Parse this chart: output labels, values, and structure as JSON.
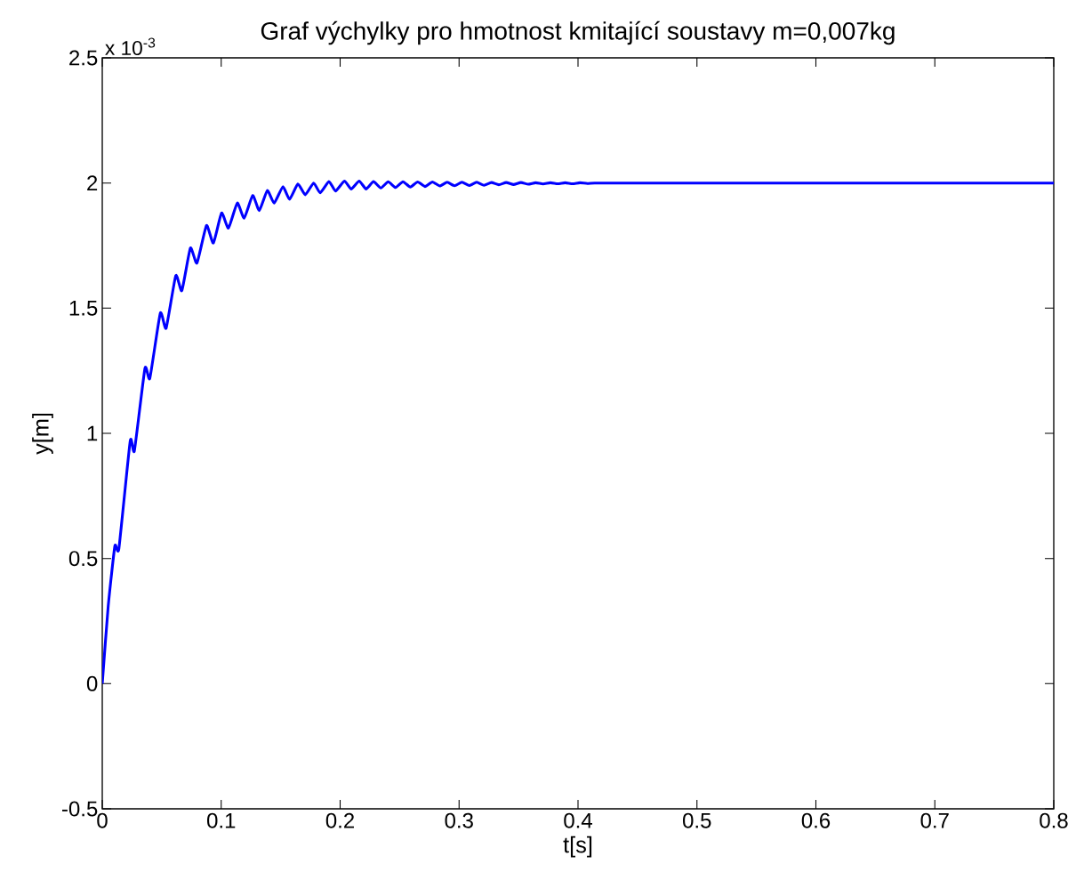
{
  "chart_data": {
    "type": "line",
    "title": "Graf výchylky pro hmotnost kmitající soustavy m=0,007kg",
    "xlabel": "t[s]",
    "ylabel": "y[m]",
    "annotations": [
      "x 10$^{-3}$"
    ],
    "color": "#0000ff",
    "line_style": "solid",
    "x": [
      0,
      0.005,
      0.0106,
      0.014,
      0.0235,
      0.027,
      0.0359,
      0.04,
      0.0488,
      0.0537,
      0.0618,
      0.0669,
      0.0741,
      0.0796,
      0.0876,
      0.0934,
      0.1003,
      0.1061,
      0.1135,
      0.1193,
      0.1265,
      0.132,
      0.1388,
      0.1445,
      0.1519,
      0.1575,
      0.1645,
      0.1707,
      0.1777,
      0.1832,
      0.1906,
      0.1961,
      0.2036,
      0.2093,
      0.216,
      0.2218,
      0.228,
      0.2342,
      0.2404,
      0.2466,
      0.2528,
      0.259,
      0.2652,
      0.2714,
      0.2776,
      0.2838,
      0.29,
      0.2962,
      0.3024,
      0.3086,
      0.3148,
      0.321,
      0.3272,
      0.3334,
      0.3396,
      0.3458,
      0.352,
      0.3582,
      0.3644,
      0.3706,
      0.3768,
      0.383,
      0.3892,
      0.3954,
      0.4016,
      0.4078,
      0.414,
      0.43,
      0.5,
      0.6,
      0.7,
      0.8
    ],
    "values": [
      0,
      0.31,
      0.55,
      0.54,
      0.97,
      0.93,
      1.26,
      1.22,
      1.48,
      1.42,
      1.63,
      1.57,
      1.74,
      1.68,
      1.83,
      1.76,
      1.88,
      1.82,
      1.92,
      1.86,
      1.95,
      1.89,
      1.97,
      1.92,
      1.985,
      1.935,
      1.996,
      1.953,
      2.0,
      1.961,
      2.006,
      1.968,
      2.008,
      1.976,
      2.008,
      1.976,
      2.006,
      1.98,
      2.005,
      1.982,
      2.005,
      1.984,
      2.004,
      1.986,
      2.004,
      1.988,
      2.003,
      1.989,
      2.003,
      1.99,
      2.003,
      1.991,
      2.002,
      1.993,
      2.002,
      1.994,
      2.002,
      1.995,
      2.001,
      1.996,
      2.001,
      1.997,
      2.001,
      1.997,
      2.001,
      1.998,
      2.0,
      2.0,
      2.0,
      2.0,
      2.0,
      2.0
    ],
    "xlim": [
      0,
      0.8
    ],
    "ylim": [
      -0.5,
      2.5
    ],
    "xticks": [
      0,
      0.1,
      0.2,
      0.3,
      0.4,
      0.5,
      0.6,
      0.7,
      0.8
    ],
    "yticks": [
      -0.5,
      0,
      0.5,
      1,
      1.5,
      2,
      2.5
    ]
  }
}
